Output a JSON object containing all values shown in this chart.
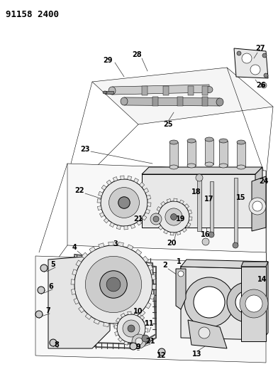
{
  "title": "91158 2400",
  "bg_color": "#ffffff",
  "line_color": "#000000",
  "figwidth": 3.92,
  "figheight": 5.33,
  "dpi": 100,
  "title_fontsize": 9,
  "label_fontsize": 7,
  "lw_main": 0.7,
  "lw_thin": 0.4,
  "gray_fill": "#cccccc",
  "light_fill": "#e8e8e8",
  "white_fill": "#ffffff"
}
